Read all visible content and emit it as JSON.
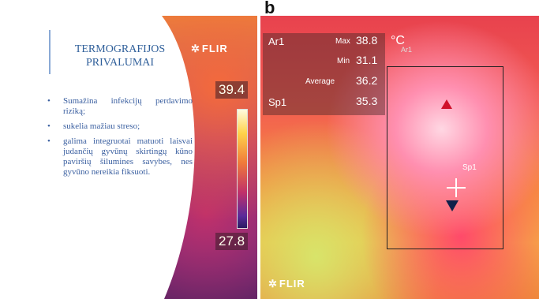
{
  "figure_label": "b",
  "title": "TERMOGRAFIJOS PRIVALUMAI",
  "bullets": [
    "Sumažina infekcijų perdavimo riziką;",
    "sukelia mažiau streso;",
    "galima integruotai matuoti laisvai judančių gyvūnų skirtingų kūno paviršių šilumines savybes, nes gyvūno nereikia fiksuoti."
  ],
  "left_image": {
    "brand": "FLIR",
    "scale_max": "39.4",
    "scale_min": "27.8"
  },
  "right_image": {
    "brand": "FLIR",
    "area_label": "Ar1",
    "max_label": "Max",
    "max_value": "38.8",
    "unit": "°C",
    "min_label": "Min",
    "min_value": "31.1",
    "average_label": "Average",
    "average_value": "36.2",
    "spot_label": "Sp1",
    "spot_value": "35.3",
    "roi_label": "Ar1",
    "spot_marker_label": "Sp1"
  },
  "colors": {
    "title": "#2f5f9a",
    "bullet_text": "#3a5fa0",
    "accent_bar": "#8aa9d6"
  }
}
